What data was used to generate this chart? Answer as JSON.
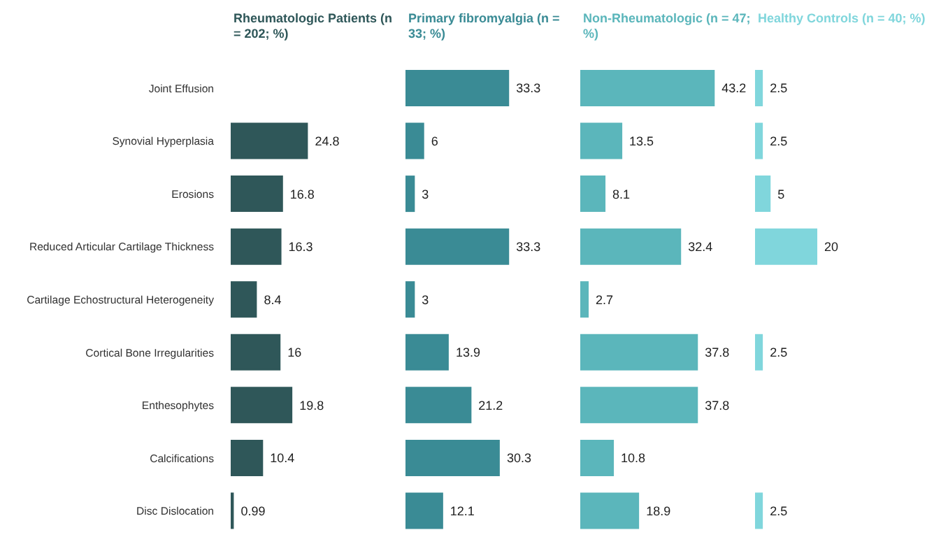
{
  "chart_data": [
    {
      "type": "bar",
      "orientation": "horizontal",
      "title": "Rheumatologic Patients (n = 202; %)",
      "categories": [
        "Joint Effusion",
        "Synovial Hyperplasia",
        "Erosions",
        "Reduced Articular Cartilage Thickness",
        "Cartilage Echostructural Heterogeneity",
        "Cortical Bone Irregularities",
        "Enthesophytes",
        "Calcifications",
        "Disc Dislocation"
      ],
      "values": [
        null,
        24.8,
        16.8,
        16.3,
        8.4,
        16,
        19.8,
        10.4,
        0.99
      ],
      "color": "#2f5759",
      "data_labels": true,
      "tick_labels": "y"
    },
    {
      "type": "bar",
      "orientation": "horizontal",
      "title": "Primary fibromyalgia (n = 33; %)",
      "categories": [
        null,
        null,
        null,
        null,
        null,
        null,
        null,
        null,
        null
      ],
      "values": [
        33.3,
        6,
        3,
        33.3,
        3,
        13.9,
        21.2,
        30.3,
        12.1
      ],
      "color": "#3a8b95",
      "data_labels": true,
      "tick_labels": false
    },
    {
      "type": "bar",
      "orientation": "horizontal",
      "title": "Non-Rheumatologic (n = 47; %)",
      "categories": [
        null,
        null,
        null,
        null,
        null,
        null,
        null,
        null,
        null
      ],
      "values": [
        43.2,
        13.5,
        8.1,
        32.4,
        2.7,
        37.8,
        37.8,
        10.8,
        18.9
      ],
      "color": "#5bb6bb",
      "data_labels": true,
      "tick_labels": false
    },
    {
      "type": "bar",
      "orientation": "horizontal",
      "title": "Healthy Controls (n = 40; %)",
      "categories": [
        null,
        null,
        null,
        null,
        null,
        null,
        null,
        null,
        null
      ],
      "values": [
        2.5,
        2.5,
        5,
        20,
        null,
        2.5,
        null,
        null,
        2.5
      ],
      "color": "#80d6dc",
      "data_labels": true,
      "tick_labels": false
    }
  ]
}
